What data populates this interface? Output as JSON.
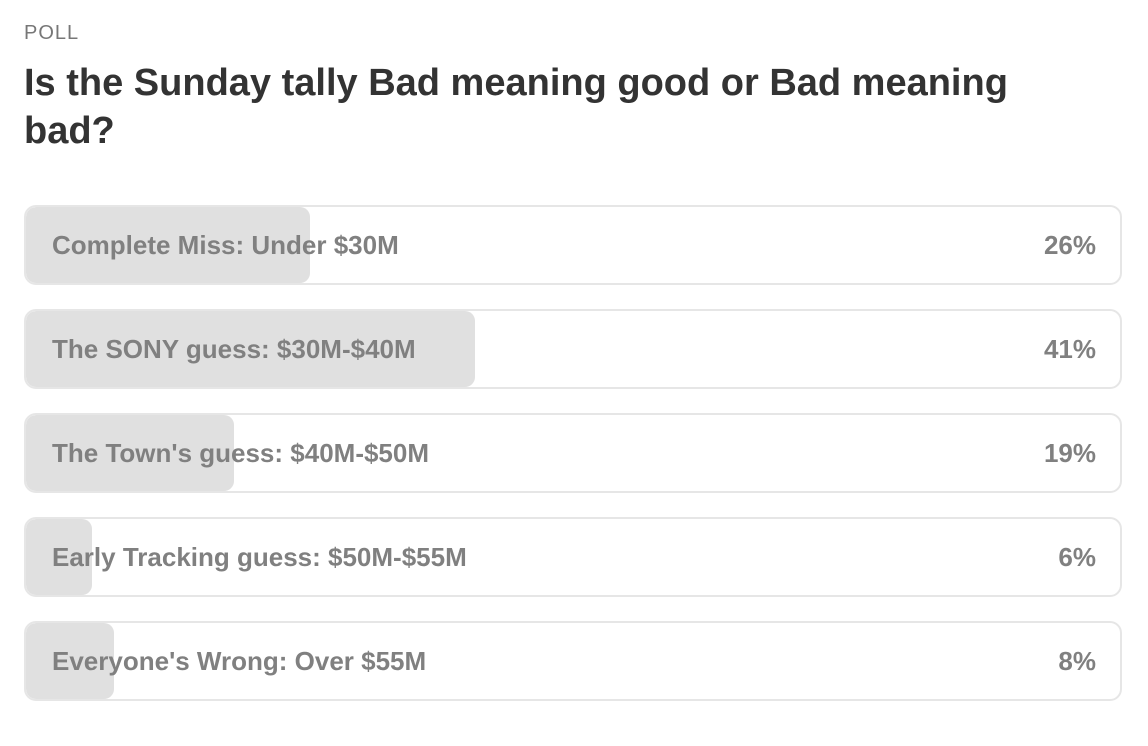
{
  "poll": {
    "label": "POLL",
    "question": "Is the Sunday tally Bad meaning good or Bad meaning bad?",
    "options": [
      {
        "label": "Complete Miss: Under $30M",
        "percent_text": "26%",
        "fraction": 0.26
      },
      {
        "label": "The SONY guess: $30M-$40M",
        "percent_text": "41%",
        "fraction": 0.41
      },
      {
        "label": "The Town's guess: $40M-$50M",
        "percent_text": "19%",
        "fraction": 0.19
      },
      {
        "label": "Early Tracking guess: $50M-$55M",
        "percent_text": "6%",
        "fraction": 0.06
      },
      {
        "label": "Everyone's Wrong: Over $55M",
        "percent_text": "8%",
        "fraction": 0.08
      }
    ]
  },
  "colors": {
    "fill": "#e0e0e0",
    "border": "#e6e6e6",
    "option_text": "#808080",
    "question_text": "#333333",
    "label_text": "#777777"
  }
}
